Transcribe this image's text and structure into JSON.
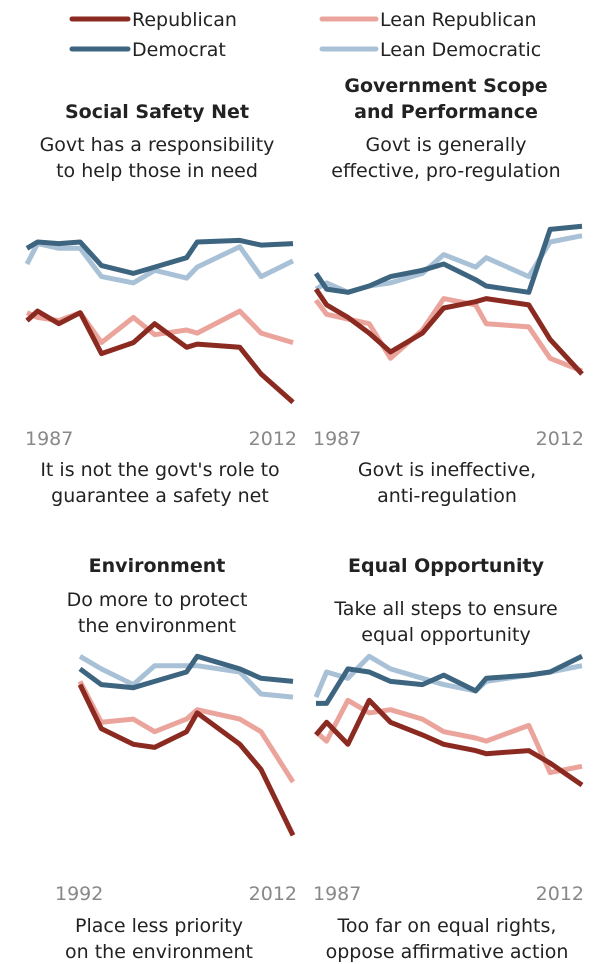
{
  "legend": [
    {
      "label": "Republican",
      "color": "#8b2a20"
    },
    {
      "label": "Lean Republican",
      "color": "#eba49b"
    },
    {
      "label": "Democrat",
      "color": "#3d6580"
    },
    {
      "label": "Lean Democratic",
      "color": "#a9c1d6"
    }
  ],
  "colors": {
    "republican": "#8b2a20",
    "lean_republican": "#eba49b",
    "democrat": "#3d6580",
    "lean_democratic": "#a9c1d6",
    "tick_text": "#888888"
  },
  "chart_data": [
    {
      "type": "line",
      "title": "Social Safety Net",
      "top_label": [
        "Govt has a responsibility",
        "to help those in need"
      ],
      "bottom_label": [
        "It is not the govt's role to",
        "guarantee a safety net"
      ],
      "x_tick_labels": [
        "1987",
        "2012"
      ],
      "x": [
        1987,
        1988,
        1990,
        1992,
        1994,
        1997,
        1999,
        2002,
        2003,
        2007,
        2009,
        2012
      ],
      "series": [
        {
          "name": "Republican",
          "values": [
            22,
            28,
            20,
            27,
            1,
            8,
            20,
            5,
            7,
            5,
            -12,
            -30
          ]
        },
        {
          "name": "Lean Republican",
          "values": [
            27,
            24,
            22,
            27,
            8,
            24,
            13,
            16,
            14,
            28,
            14,
            8
          ]
        },
        {
          "name": "Democrat",
          "values": [
            68,
            72,
            71,
            72,
            57,
            52,
            56,
            62,
            72,
            73,
            70,
            71
          ]
        },
        {
          "name": "Lean Democratic",
          "values": [
            58,
            71,
            68,
            68,
            50,
            46,
            54,
            49,
            56,
            69,
            50,
            60
          ]
        }
      ]
    },
    {
      "type": "line",
      "title": "Government Scope and Performance",
      "title_lines": [
        "Government Scope",
        "and Performance"
      ],
      "top_label": [
        "Govt is generally",
        "effective, pro-regulation"
      ],
      "bottom_label": [
        "Govt is ineffective,",
        "anti-regulation"
      ],
      "x_tick_labels": [
        "1987",
        "2012"
      ],
      "x": [
        1987,
        1988,
        1990,
        1992,
        1994,
        1997,
        1999,
        2002,
        2003,
        2007,
        2009,
        2012
      ],
      "series": [
        {
          "name": "Republican",
          "values": [
            42,
            32,
            24,
            14,
            2,
            14,
            30,
            34,
            36,
            32,
            10,
            -12
          ]
        },
        {
          "name": "Lean Republican",
          "values": [
            35,
            26,
            23,
            20,
            -2,
            16,
            36,
            32,
            20,
            18,
            -2,
            -10
          ]
        },
        {
          "name": "Democrat",
          "values": [
            52,
            42,
            40,
            44,
            50,
            54,
            58,
            48,
            44,
            40,
            80,
            82
          ]
        },
        {
          "name": "Lean Democratic",
          "values": [
            42,
            46,
            40,
            44,
            46,
            52,
            64,
            56,
            62,
            50,
            72,
            76
          ]
        }
      ]
    },
    {
      "type": "line",
      "title": "Environment",
      "top_label": [
        "Do more to protect",
        "the environment"
      ],
      "bottom_label": [
        "Place less priority",
        "on the environment"
      ],
      "x_tick_labels": [
        "1992",
        "2012"
      ],
      "x": [
        1992,
        1994,
        1997,
        1999,
        2002,
        2003,
        2007,
        2009,
        2012
      ],
      "series": [
        {
          "name": "Republican",
          "values": [
            78,
            50,
            40,
            38,
            48,
            60,
            40,
            24,
            -18
          ]
        },
        {
          "name": "Lean Republican",
          "values": [
            80,
            54,
            56,
            48,
            56,
            62,
            56,
            48,
            16
          ]
        },
        {
          "name": "Democrat",
          "values": [
            88,
            78,
            76,
            80,
            86,
            96,
            88,
            82,
            80
          ]
        },
        {
          "name": "Lean Democratic",
          "values": [
            96,
            88,
            78,
            90,
            90,
            90,
            86,
            72,
            70
          ]
        }
      ]
    },
    {
      "type": "line",
      "title": "Equal Opportunity",
      "top_label": [
        "Take all steps to ensure",
        "equal opportunity"
      ],
      "bottom_label": [
        "Too far on equal rights,",
        "oppose affirmative action"
      ],
      "x_tick_labels": [
        "1987",
        "2012"
      ],
      "x": [
        1987,
        1988,
        1990,
        1992,
        1994,
        1997,
        1999,
        2002,
        2003,
        2007,
        2009,
        2012
      ],
      "series": [
        {
          "name": "Republican",
          "values": [
            46,
            54,
            40,
            68,
            54,
            46,
            40,
            36,
            34,
            36,
            28,
            14
          ]
        },
        {
          "name": "Lean Republican",
          "values": [
            48,
            42,
            68,
            60,
            62,
            56,
            48,
            44,
            42,
            52,
            22,
            26
          ]
        },
        {
          "name": "Democrat",
          "values": [
            66,
            66,
            88,
            86,
            80,
            78,
            84,
            74,
            82,
            84,
            86,
            96
          ]
        },
        {
          "name": "Lean Democratic",
          "values": [
            70,
            86,
            82,
            96,
            88,
            82,
            78,
            74,
            80,
            84,
            86,
            90
          ]
        }
      ]
    }
  ]
}
